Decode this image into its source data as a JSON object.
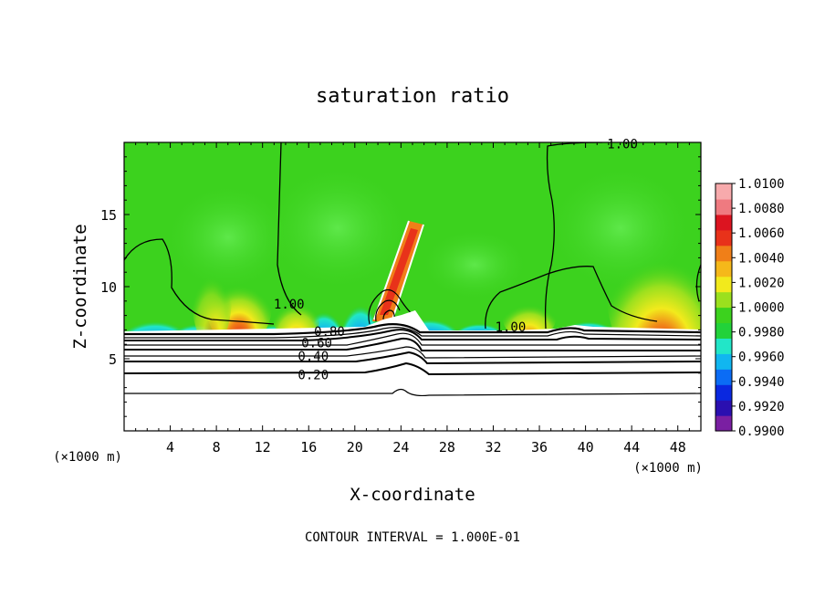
{
  "chart_data": {
    "type": "heatmap",
    "title": "saturation ratio",
    "xlabel": "X-coordinate",
    "ylabel": "Z-coordinate",
    "x_unit": "(×1000 m)",
    "y_unit": "(×1000 m)",
    "xlim": [
      0,
      50
    ],
    "ylim": [
      0,
      20
    ],
    "x_ticks": [
      4,
      8,
      12,
      16,
      20,
      24,
      28,
      32,
      36,
      40,
      44,
      48
    ],
    "y_ticks": [
      5,
      10,
      15
    ],
    "colorbar": {
      "min": 0.99,
      "max": 1.01,
      "labels": [
        "1.0100",
        "1.0080",
        "1.0060",
        "1.0040",
        "1.0020",
        "1.0000",
        "0.9980",
        "0.9960",
        "0.9940",
        "0.9920",
        "0.9900"
      ],
      "colors": [
        "#7a1fa2",
        "#2a0fb0",
        "#0a28e0",
        "#0b6cf5",
        "#11b6f0",
        "#22e6c8",
        "#22d23a",
        "#3cd21e",
        "#9be01e",
        "#f2ea1c",
        "#f5b81a",
        "#f07f18",
        "#e8321a",
        "#dc1420",
        "#ef7a80",
        "#f7aaac"
      ]
    },
    "contour_labels": [
      {
        "text": "1.00",
        "x": 33.5,
        "z": 7.2
      },
      {
        "text": "1.00",
        "x": 14.3,
        "z": 8.8
      },
      {
        "text": "1.00",
        "x": 43.2,
        "z": 19.9
      },
      {
        "text": "0.80",
        "x": 17.8,
        "z": 6.9
      },
      {
        "text": "0.60",
        "x": 16.7,
        "z": 6.1
      },
      {
        "text": "0.40",
        "x": 16.4,
        "z": 5.2
      },
      {
        "text": "0.20",
        "x": 16.4,
        "z": 3.9
      }
    ],
    "footer": "CONTOUR INTERVAL = 1.000E-01"
  }
}
